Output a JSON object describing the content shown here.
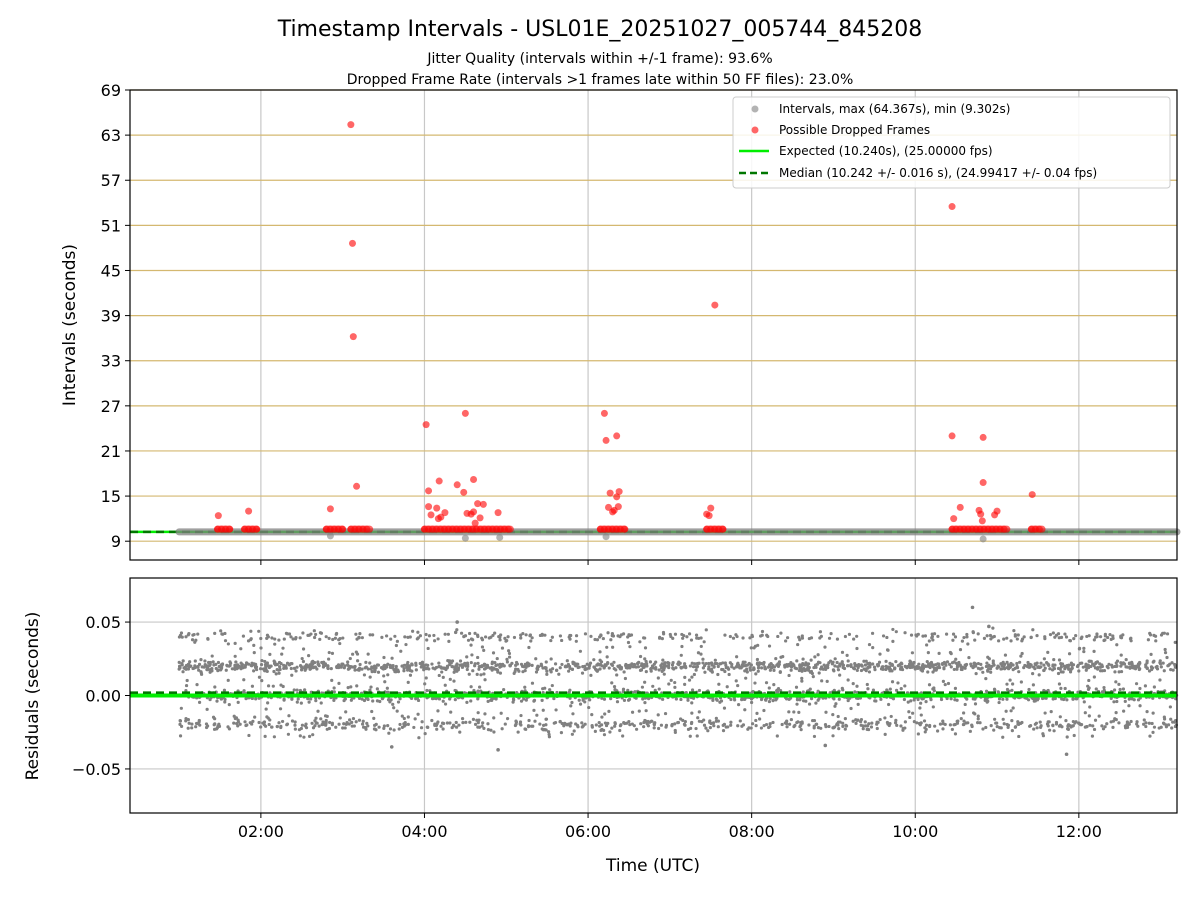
{
  "title": "Timestamp Intervals - USL01E_20251027_005744_845208",
  "subtitle_1": "Jitter Quality (intervals within +/-1 frame): 93.6%",
  "subtitle_2": "Dropped Frame Rate (intervals >1 frames late within 50 FF files): 23.0%",
  "colors": {
    "intervals": "#808080",
    "dropped": "#ff0000",
    "expected": "#00ee00",
    "median": "#007700",
    "hgrid_top": "#d4b870",
    "grid": "#c8c8c8"
  },
  "chart_data": [
    {
      "type": "scatter",
      "name": "intervals-panel",
      "xlabel": "",
      "ylabel": "Intervals (seconds)",
      "xlim_hours": [
        0.4,
        13.2
      ],
      "ylim": [
        6.5,
        69
      ],
      "yticks": [
        9,
        15,
        21,
        27,
        33,
        39,
        45,
        51,
        57,
        63,
        69
      ],
      "ytick_labels": [
        "9",
        "15",
        "21",
        "27",
        "33",
        "39",
        "45",
        "51",
        "57",
        "63",
        "69"
      ],
      "xticks_hours": [
        2,
        4,
        6,
        8,
        10,
        12
      ],
      "grid": true,
      "legend_position": "top-right",
      "legend": [
        {
          "kind": "gray-dot",
          "label": "Intervals, max (64.367s), min (9.302s)"
        },
        {
          "kind": "red-dot",
          "label": "Possible Dropped Frames"
        },
        {
          "kind": "green-line",
          "label": "Expected (10.240s), (25.00000 fps)"
        },
        {
          "kind": "dashed-line",
          "label": "Median (10.242 +/- 0.016 s), (24.99417 +/- 0.04 fps)"
        }
      ],
      "series": [
        {
          "name": "Expected",
          "value": 10.24
        },
        {
          "name": "Median",
          "value": 10.242
        },
        {
          "name": "Intervals",
          "segment_hours": [
            1.0,
            13.2
          ],
          "below_baseline_points": [
            [
              2.85,
              9.7
            ],
            [
              4.5,
              9.4
            ],
            [
              4.92,
              9.5
            ],
            [
              6.22,
              9.6
            ],
            [
              10.83,
              9.3
            ]
          ]
        },
        {
          "name": "Possible Dropped Frames",
          "baseline_value": 10.6,
          "baseline_runs_hours": [
            [
              1.47,
              1.62
            ],
            [
              1.8,
              1.95
            ],
            [
              2.8,
              3.0
            ],
            [
              3.1,
              3.33
            ],
            [
              4.0,
              5.05
            ],
            [
              6.15,
              6.45
            ],
            [
              7.45,
              7.65
            ],
            [
              10.45,
              11.12
            ],
            [
              11.42,
              11.55
            ]
          ],
          "outliers": [
            [
              1.48,
              12.4
            ],
            [
              1.85,
              13.0
            ],
            [
              2.85,
              13.3
            ],
            [
              3.1,
              64.4
            ],
            [
              3.12,
              48.6
            ],
            [
              3.13,
              36.2
            ],
            [
              3.17,
              16.3
            ],
            [
              4.02,
              24.5
            ],
            [
              4.05,
              15.7
            ],
            [
              4.05,
              13.6
            ],
            [
              4.08,
              12.5
            ],
            [
              4.15,
              13.4
            ],
            [
              4.17,
              12.0
            ],
            [
              4.18,
              17.0
            ],
            [
              4.2,
              12.2
            ],
            [
              4.25,
              12.8
            ],
            [
              4.4,
              16.5
            ],
            [
              4.48,
              15.5
            ],
            [
              4.5,
              26.0
            ],
            [
              4.52,
              12.7
            ],
            [
              4.57,
              12.6
            ],
            [
              4.6,
              17.2
            ],
            [
              4.6,
              12.9
            ],
            [
              4.62,
              11.4
            ],
            [
              4.65,
              14.0
            ],
            [
              4.68,
              12.1
            ],
            [
              4.72,
              13.9
            ],
            [
              4.9,
              12.8
            ],
            [
              6.2,
              26.0
            ],
            [
              6.22,
              22.4
            ],
            [
              6.25,
              13.5
            ],
            [
              6.27,
              15.4
            ],
            [
              6.3,
              12.9
            ],
            [
              6.32,
              13.1
            ],
            [
              6.35,
              23.0
            ],
            [
              6.35,
              14.9
            ],
            [
              6.37,
              13.6
            ],
            [
              6.38,
              15.6
            ],
            [
              7.45,
              12.6
            ],
            [
              7.48,
              12.4
            ],
            [
              7.5,
              13.4
            ],
            [
              7.55,
              40.4
            ],
            [
              10.45,
              53.5
            ],
            [
              10.45,
              23.0
            ],
            [
              10.47,
              12.0
            ],
            [
              10.55,
              13.5
            ],
            [
              10.78,
              13.1
            ],
            [
              10.8,
              12.6
            ],
            [
              10.82,
              11.7
            ],
            [
              10.83,
              22.8
            ],
            [
              10.83,
              16.8
            ],
            [
              10.97,
              12.5
            ],
            [
              11.0,
              13.0
            ],
            [
              11.43,
              15.2
            ]
          ]
        }
      ]
    },
    {
      "type": "scatter",
      "name": "residuals-panel",
      "xlabel": "Time (UTC)",
      "ylabel": "Residuals (seconds)",
      "xlim_hours": [
        0.4,
        13.2
      ],
      "ylim": [
        -0.08,
        0.08
      ],
      "yticks": [
        -0.05,
        0,
        0.05
      ],
      "ytick_labels": [
        "−0.05",
        "0.00",
        "0.05"
      ],
      "xticks_hours": [
        2,
        4,
        6,
        8,
        10,
        12
      ],
      "xtick_labels": [
        "02:00",
        "04:00",
        "06:00",
        "08:00",
        "10:00",
        "12:00"
      ],
      "grid": true,
      "series": [
        {
          "name": "Expected",
          "value": 0.0
        },
        {
          "name": "Median",
          "value": 0.002
        },
        {
          "name": "Residuals",
          "range_hours": [
            1.0,
            13.2
          ],
          "bands": [
            0.0,
            0.02,
            -0.02,
            0.04
          ],
          "spread": 0.02,
          "notable_points": [
            [
              10.7,
              0.06
            ],
            [
              10.9,
              0.047
            ],
            [
              4.4,
              0.05
            ],
            [
              4.9,
              -0.037
            ],
            [
              11.85,
              -0.04
            ],
            [
              8.9,
              -0.034
            ],
            [
              3.6,
              -0.035
            ]
          ]
        }
      ]
    }
  ]
}
